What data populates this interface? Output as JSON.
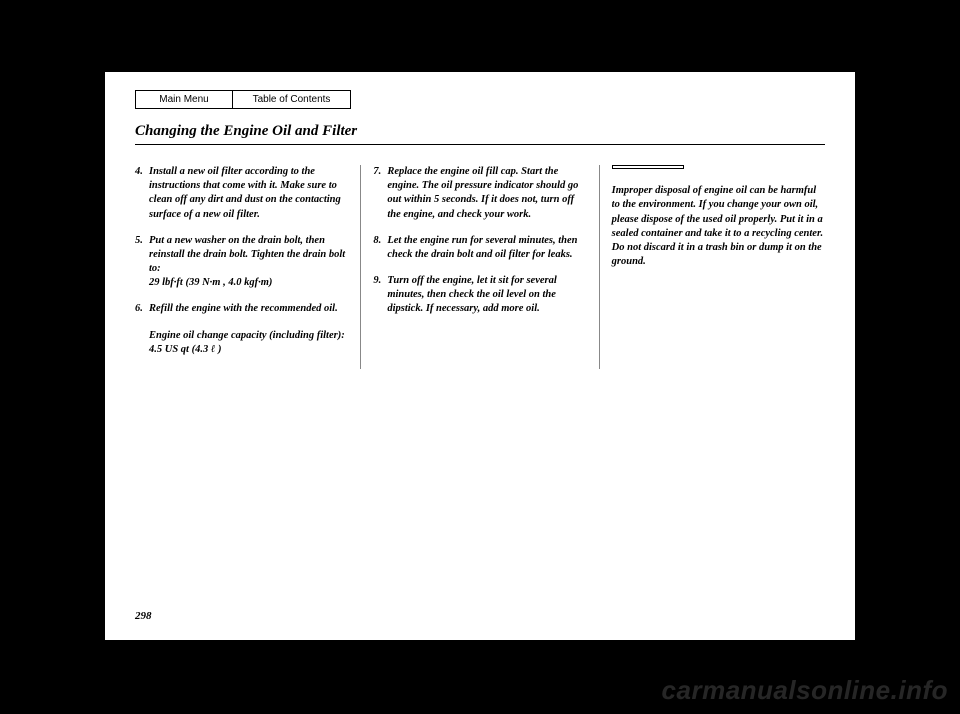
{
  "nav": {
    "main_menu": "Main Menu",
    "toc": "Table of Contents"
  },
  "title": "Changing the Engine Oil and Filter",
  "col1": {
    "step4": {
      "num": "4.",
      "text": "Install a new oil filter according to the instructions that come with it. Make sure to clean off any dirt and dust on the contacting surface of a new oil filter."
    },
    "step5": {
      "num": "5.",
      "text": "Put a new washer on the drain bolt, then reinstall the drain bolt. Tighten the drain bolt to:",
      "spec": "29 lbf·ft (39 N·m , 4.0 kgf·m)"
    },
    "step6": {
      "num": "6.",
      "text": "Refill the engine with the recommended oil."
    },
    "capacity_label": "Engine oil change capacity (including filter):",
    "capacity_value": "4.5 US qt (4.3 ℓ )"
  },
  "col2": {
    "step7": {
      "num": "7.",
      "text": "Replace the engine oil fill cap. Start the engine. The oil pressure indicator should go out within 5 seconds. If it does not, turn off the engine, and check your work."
    },
    "step8": {
      "num": "8.",
      "text": "Let the engine run for several minutes, then check the drain bolt and oil filter for leaks."
    },
    "step9": {
      "num": "9.",
      "text": "Turn off the engine, let it sit for several minutes, then check the oil level on the dipstick. If necessary, add more oil."
    }
  },
  "col3": {
    "notice_label": "",
    "notice_text": "Improper disposal of engine oil can be harmful to the environment. If you change your own oil, please dispose of the used oil properly. Put it in a sealed container and take it to a recycling center. Do not discard it in a trash bin or dump it on the ground."
  },
  "page_number": "298",
  "watermark": "carmanualsonline.info"
}
